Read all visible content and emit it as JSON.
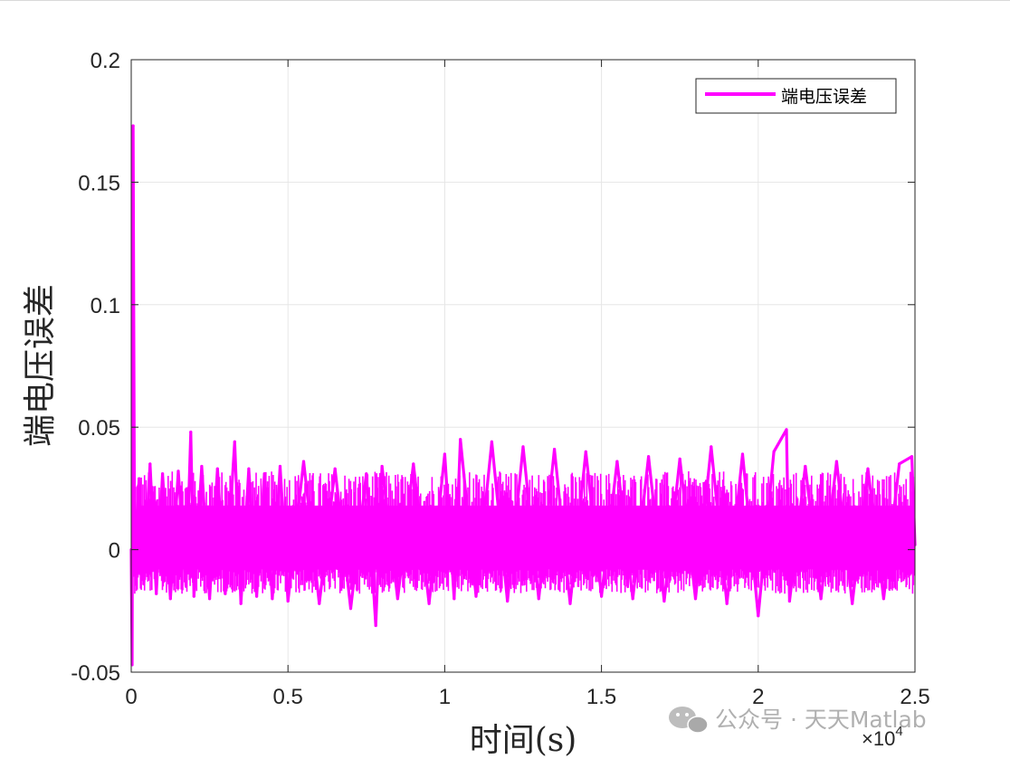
{
  "chart_data": {
    "type": "line",
    "title": "",
    "xlabel": "时间(s)",
    "ylabel": "端电压误差",
    "x_multiplier_label": "×10",
    "x_multiplier_exponent": "4",
    "xlim": [
      0,
      25000
    ],
    "ylim": [
      -0.05,
      0.2
    ],
    "x_ticks": [
      0,
      5000,
      10000,
      15000,
      20000,
      25000
    ],
    "x_tick_labels": [
      "0",
      "0.5",
      "1",
      "1.5",
      "2",
      "2.5"
    ],
    "y_ticks": [
      -0.05,
      0,
      0.05,
      0.1,
      0.15,
      0.2
    ],
    "y_tick_labels": [
      "-0.05",
      "0",
      "0.05",
      "0.1",
      "0.15",
      "0.2"
    ],
    "grid": true,
    "legend_position": "top-right",
    "series": [
      {
        "name": "端电压误差",
        "color": "#ff00ff",
        "x": [
          0,
          30,
          60,
          100,
          150,
          250,
          400,
          600,
          800,
          1000,
          1250,
          1500,
          1750,
          1900,
          2000,
          2250,
          2500,
          2750,
          3000,
          3300,
          3500,
          3750,
          4000,
          4250,
          4500,
          4750,
          5000,
          5500,
          6000,
          6500,
          7000,
          7500,
          7800,
          8000,
          8500,
          9000,
          9500,
          10000,
          10300,
          10500,
          11000,
          11500,
          12000,
          12500,
          13000,
          13500,
          14000,
          14500,
          15000,
          15500,
          16000,
          16500,
          17000,
          17500,
          18000,
          18500,
          19000,
          19500,
          20000,
          20500,
          20900,
          21000,
          21500,
          22000,
          22500,
          23000,
          23500,
          24000,
          24500,
          24900,
          25000
        ],
        "y": [
          0,
          -0.047,
          0.173,
          0.02,
          0,
          0.029,
          -0.014,
          0.035,
          -0.018,
          0.031,
          -0.02,
          0.032,
          -0.015,
          0.048,
          -0.019,
          0.034,
          -0.02,
          0.033,
          -0.018,
          0.044,
          -0.022,
          0.033,
          -0.019,
          0.031,
          -0.02,
          0.034,
          -0.021,
          0.036,
          -0.022,
          0.033,
          -0.024,
          0.031,
          -0.031,
          0.034,
          -0.02,
          0.035,
          -0.022,
          0.039,
          -0.02,
          0.045,
          -0.019,
          0.044,
          -0.021,
          0.042,
          -0.02,
          0.041,
          -0.022,
          0.04,
          -0.019,
          0.036,
          -0.02,
          0.038,
          -0.021,
          0.037,
          -0.02,
          0.042,
          -0.022,
          0.039,
          -0.027,
          0.04,
          0.049,
          -0.021,
          0.034,
          -0.02,
          0.036,
          -0.022,
          0.033,
          -0.02,
          0.035,
          0.038,
          0.002
        ]
      }
    ]
  },
  "watermark": {
    "icon": "wechat-icon",
    "text": "公众号 · 天天Matlab"
  }
}
